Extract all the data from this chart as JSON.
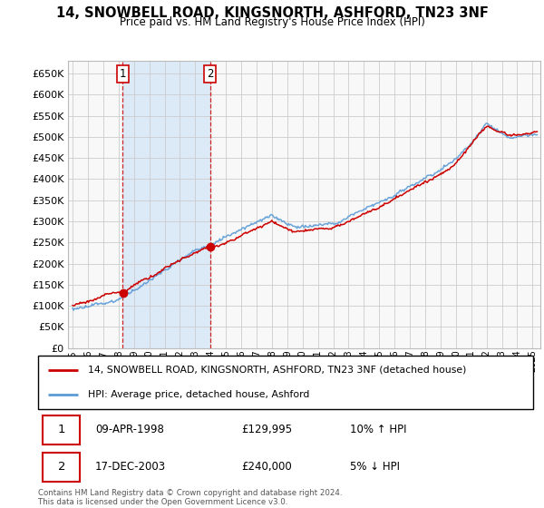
{
  "title": "14, SNOWBELL ROAD, KINGSNORTH, ASHFORD, TN23 3NF",
  "subtitle": "Price paid vs. HM Land Registry's House Price Index (HPI)",
  "legend_line1": "14, SNOWBELL ROAD, KINGSNORTH, ASHFORD, TN23 3NF (detached house)",
  "legend_line2": "HPI: Average price, detached house, Ashford",
  "transaction1_date": "09-APR-1998",
  "transaction1_price": "£129,995",
  "transaction1_hpi": "10% ↑ HPI",
  "transaction2_date": "17-DEC-2003",
  "transaction2_price": "£240,000",
  "transaction2_hpi": "5% ↓ HPI",
  "copyright": "Contains HM Land Registry data © Crown copyright and database right 2024.\nThis data is licensed under the Open Government Licence v3.0.",
  "hpi_color": "#5b9bd5",
  "hpi_fill_color": "#dce9f7",
  "price_color": "#cc0000",
  "vline_color": "#cc0000",
  "grid_color": "#cccccc",
  "bg_color": "#f8f8f8",
  "ylim_min": 0,
  "ylim_max": 680000,
  "ytick_step": 50000,
  "xlim_start": 1994.7,
  "xlim_end": 2025.5,
  "transaction1_x": 1998.27,
  "transaction2_x": 2003.96
}
